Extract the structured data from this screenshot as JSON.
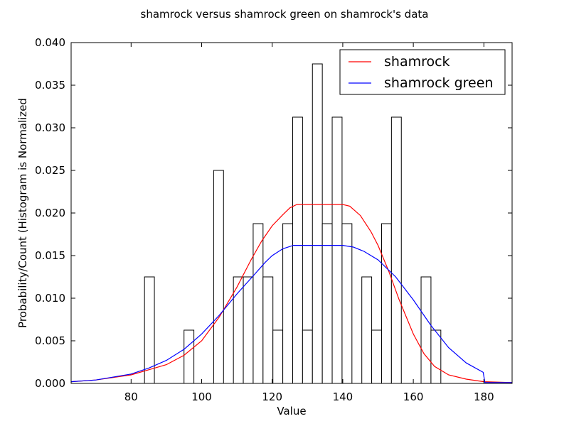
{
  "chart_data": {
    "type": "histogram+line",
    "title": "shamrock versus shamrock green on shamrock's data",
    "xlabel": "Value",
    "ylabel": "Probability/Count (Histogram is Normalized",
    "xlim": [
      63,
      188
    ],
    "ylim": [
      0,
      0.04
    ],
    "xticks": [
      80,
      100,
      120,
      140,
      160,
      180
    ],
    "yticks": [
      0.0,
      0.005,
      0.01,
      0.015,
      0.02,
      0.025,
      0.03,
      0.035,
      0.04
    ],
    "ytick_labels": [
      "0.000",
      "0.005",
      "0.010",
      "0.015",
      "0.020",
      "0.025",
      "0.030",
      "0.035",
      "0.040"
    ],
    "legend_position": "upper right",
    "histogram": {
      "bin_width": 2.8,
      "edge_color": "#000000",
      "fill_color": "#ffffff",
      "bins": [
        {
          "x0": 83.8,
          "value": 0.0125
        },
        {
          "x0": 95.0,
          "value": 0.00625
        },
        {
          "x0": 103.4,
          "value": 0.025
        },
        {
          "x0": 109.0,
          "value": 0.0125
        },
        {
          "x0": 111.8,
          "value": 0.0125
        },
        {
          "x0": 114.6,
          "value": 0.01875
        },
        {
          "x0": 117.4,
          "value": 0.0125
        },
        {
          "x0": 120.2,
          "value": 0.00625
        },
        {
          "x0": 123.0,
          "value": 0.01875
        },
        {
          "x0": 125.8,
          "value": 0.03125
        },
        {
          "x0": 128.6,
          "value": 0.00625
        },
        {
          "x0": 131.4,
          "value": 0.0375
        },
        {
          "x0": 134.2,
          "value": 0.01875
        },
        {
          "x0": 137.0,
          "value": 0.03125
        },
        {
          "x0": 139.8,
          "value": 0.01875
        },
        {
          "x0": 145.4,
          "value": 0.0125
        },
        {
          "x0": 148.2,
          "value": 0.00625
        },
        {
          "x0": 151.0,
          "value": 0.01875
        },
        {
          "x0": 153.8,
          "value": 0.03125
        },
        {
          "x0": 162.2,
          "value": 0.0125
        },
        {
          "x0": 165.0,
          "value": 0.00625
        }
      ]
    },
    "series": [
      {
        "name": "shamrock",
        "color": "#ff0000",
        "points": [
          [
            63,
            0.0002
          ],
          [
            70,
            0.0004
          ],
          [
            80,
            0.001
          ],
          [
            85,
            0.0016
          ],
          [
            90,
            0.0022
          ],
          [
            95,
            0.0033
          ],
          [
            100,
            0.005
          ],
          [
            105,
            0.0078
          ],
          [
            110,
            0.0113
          ],
          [
            114,
            0.0145
          ],
          [
            117,
            0.0167
          ],
          [
            120,
            0.0185
          ],
          [
            123,
            0.0198
          ],
          [
            125,
            0.0206
          ],
          [
            127,
            0.021
          ],
          [
            130,
            0.021
          ],
          [
            135,
            0.021
          ],
          [
            140,
            0.021
          ],
          [
            142,
            0.0208
          ],
          [
            145,
            0.0197
          ],
          [
            148,
            0.0178
          ],
          [
            150,
            0.0162
          ],
          [
            153,
            0.0132
          ],
          [
            156,
            0.0098
          ],
          [
            160,
            0.0058
          ],
          [
            163,
            0.0035
          ],
          [
            166,
            0.002
          ],
          [
            170,
            0.001
          ],
          [
            175,
            0.0005
          ],
          [
            180,
            0.0002
          ],
          [
            188,
            0.0001
          ]
        ]
      },
      {
        "name": "shamrock green",
        "color": "#0000ff",
        "points": [
          [
            63,
            0.0002
          ],
          [
            70,
            0.0004
          ],
          [
            80,
            0.0011
          ],
          [
            85,
            0.0018
          ],
          [
            90,
            0.0027
          ],
          [
            95,
            0.004
          ],
          [
            100,
            0.0058
          ],
          [
            105,
            0.008
          ],
          [
            110,
            0.0105
          ],
          [
            115,
            0.0128
          ],
          [
            118,
            0.0142
          ],
          [
            120,
            0.015
          ],
          [
            123,
            0.0158
          ],
          [
            126,
            0.0162
          ],
          [
            130,
            0.0162
          ],
          [
            135,
            0.0162
          ],
          [
            140,
            0.0162
          ],
          [
            143,
            0.016
          ],
          [
            146,
            0.0155
          ],
          [
            150,
            0.0145
          ],
          [
            155,
            0.0125
          ],
          [
            160,
            0.0098
          ],
          [
            165,
            0.0068
          ],
          [
            170,
            0.0042
          ],
          [
            175,
            0.0024
          ],
          [
            179.8,
            0.0013
          ],
          [
            180.3,
            0.0001
          ],
          [
            188,
            0.0001
          ]
        ]
      }
    ]
  }
}
